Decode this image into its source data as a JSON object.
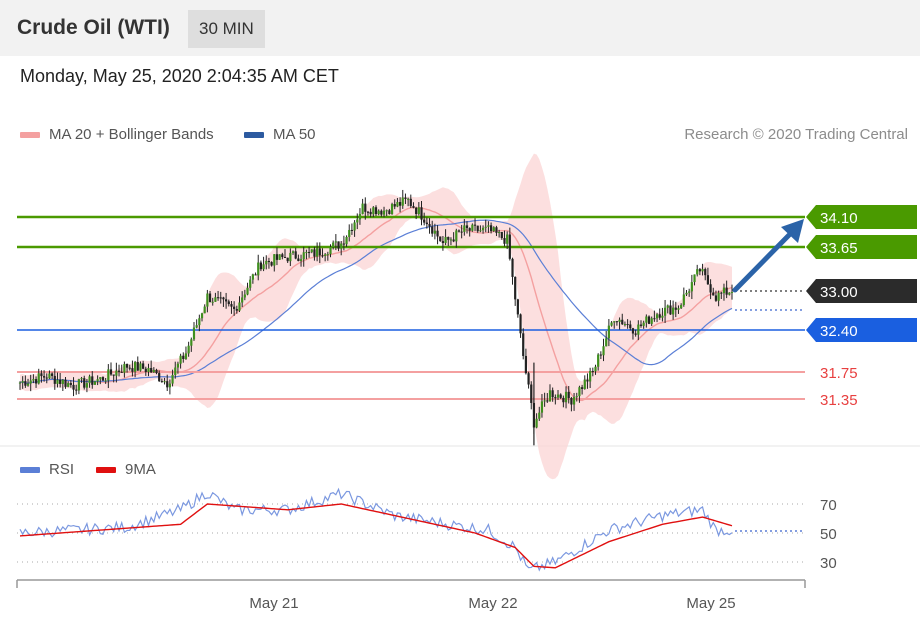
{
  "header": {
    "title": "Crude Oil (WTI)",
    "timeframe": "30 MIN"
  },
  "datetime": "Monday, May 25, 2020 2:04:35 AM CET",
  "legend": {
    "ma20": {
      "label": "MA 20 + Bollinger Bands",
      "color": "#f08a8a"
    },
    "ma50": {
      "label": "MA 50",
      "color": "#2c5aa0"
    }
  },
  "credit": "Research © 2020 Trading Central",
  "rsi_legend": {
    "rsi": {
      "label": "RSI",
      "color": "#5b7fd6"
    },
    "ma9": {
      "label": "9MA",
      "color": "#e01010"
    }
  },
  "x_labels": [
    "May 21",
    "May 22",
    "May 25"
  ],
  "levels": [
    {
      "value": "34.10",
      "type": "resistance",
      "color": "#4a9a00"
    },
    {
      "value": "33.65",
      "type": "resistance",
      "color": "#4a9a00"
    },
    {
      "value": "33.00",
      "type": "last",
      "color": "#333333"
    },
    {
      "value": "32.40",
      "type": "pivot",
      "color": "#1a5fe0"
    },
    {
      "value": "31.75",
      "type": "support",
      "color": "#e84040"
    },
    {
      "value": "31.35",
      "type": "support",
      "color": "#e84040"
    }
  ],
  "rsi_levels": [
    "70",
    "50",
    "30"
  ],
  "chart_data": [
    {
      "type": "candlestick",
      "title": "Crude Oil (WTI)",
      "timeframe": "30 MIN",
      "x_ticks": [
        "May 21",
        "May 22",
        "May 25"
      ],
      "y_range": [
        30.6,
        35.3
      ],
      "approx_close_path": [
        [
          0,
          31.6
        ],
        [
          10,
          31.7
        ],
        [
          20,
          31.55
        ],
        [
          30,
          31.65
        ],
        [
          40,
          31.85
        ],
        [
          48,
          31.8
        ],
        [
          55,
          31.6
        ],
        [
          62,
          32.05
        ],
        [
          70,
          32.9
        ],
        [
          80,
          32.7
        ],
        [
          90,
          33.4
        ],
        [
          100,
          33.5
        ],
        [
          110,
          33.55
        ],
        [
          120,
          33.7
        ],
        [
          128,
          34.25
        ],
        [
          136,
          34.2
        ],
        [
          145,
          34.35
        ],
        [
          152,
          34.05
        ],
        [
          158,
          33.7
        ],
        [
          166,
          33.9
        ],
        [
          175,
          33.9
        ],
        [
          182,
          33.75
        ],
        [
          188,
          32.0
        ],
        [
          192,
          31.0
        ],
        [
          198,
          31.45
        ],
        [
          206,
          31.35
        ],
        [
          214,
          31.75
        ],
        [
          222,
          32.6
        ],
        [
          230,
          32.4
        ],
        [
          238,
          32.65
        ],
        [
          246,
          32.75
        ],
        [
          254,
          33.3
        ],
        [
          260,
          32.9
        ],
        [
          266,
          33.0
        ]
      ],
      "series": [
        {
          "name": "MA 20 + Bollinger Bands"
        },
        {
          "name": "MA 50"
        }
      ],
      "levels": [
        34.1,
        33.65,
        33.0,
        32.4,
        31.75,
        31.35
      ],
      "last_price": 33.0,
      "annotation": "arrow up toward 34.10"
    },
    {
      "type": "line",
      "title": "",
      "series": [
        {
          "name": "RSI"
        },
        {
          "name": "9MA"
        }
      ],
      "y_ticks": [
        70,
        50,
        30
      ],
      "approx_rsi_path": [
        [
          0,
          50
        ],
        [
          20,
          52
        ],
        [
          40,
          54
        ],
        [
          60,
          66
        ],
        [
          70,
          78
        ],
        [
          80,
          66
        ],
        [
          100,
          66
        ],
        [
          120,
          77
        ],
        [
          140,
          62
        ],
        [
          160,
          56
        ],
        [
          175,
          52
        ],
        [
          185,
          40
        ],
        [
          190,
          24
        ],
        [
          200,
          30
        ],
        [
          220,
          52
        ],
        [
          240,
          62
        ],
        [
          255,
          66
        ],
        [
          260,
          52
        ],
        [
          266,
          52
        ]
      ],
      "approx_ma9_path": [
        [
          0,
          48
        ],
        [
          30,
          52
        ],
        [
          60,
          56
        ],
        [
          70,
          70
        ],
        [
          100,
          66
        ],
        [
          120,
          70
        ],
        [
          150,
          58
        ],
        [
          170,
          50
        ],
        [
          185,
          40
        ],
        [
          192,
          27
        ],
        [
          200,
          26
        ],
        [
          220,
          44
        ],
        [
          240,
          56
        ],
        [
          255,
          61
        ],
        [
          266,
          55
        ]
      ]
    }
  ]
}
